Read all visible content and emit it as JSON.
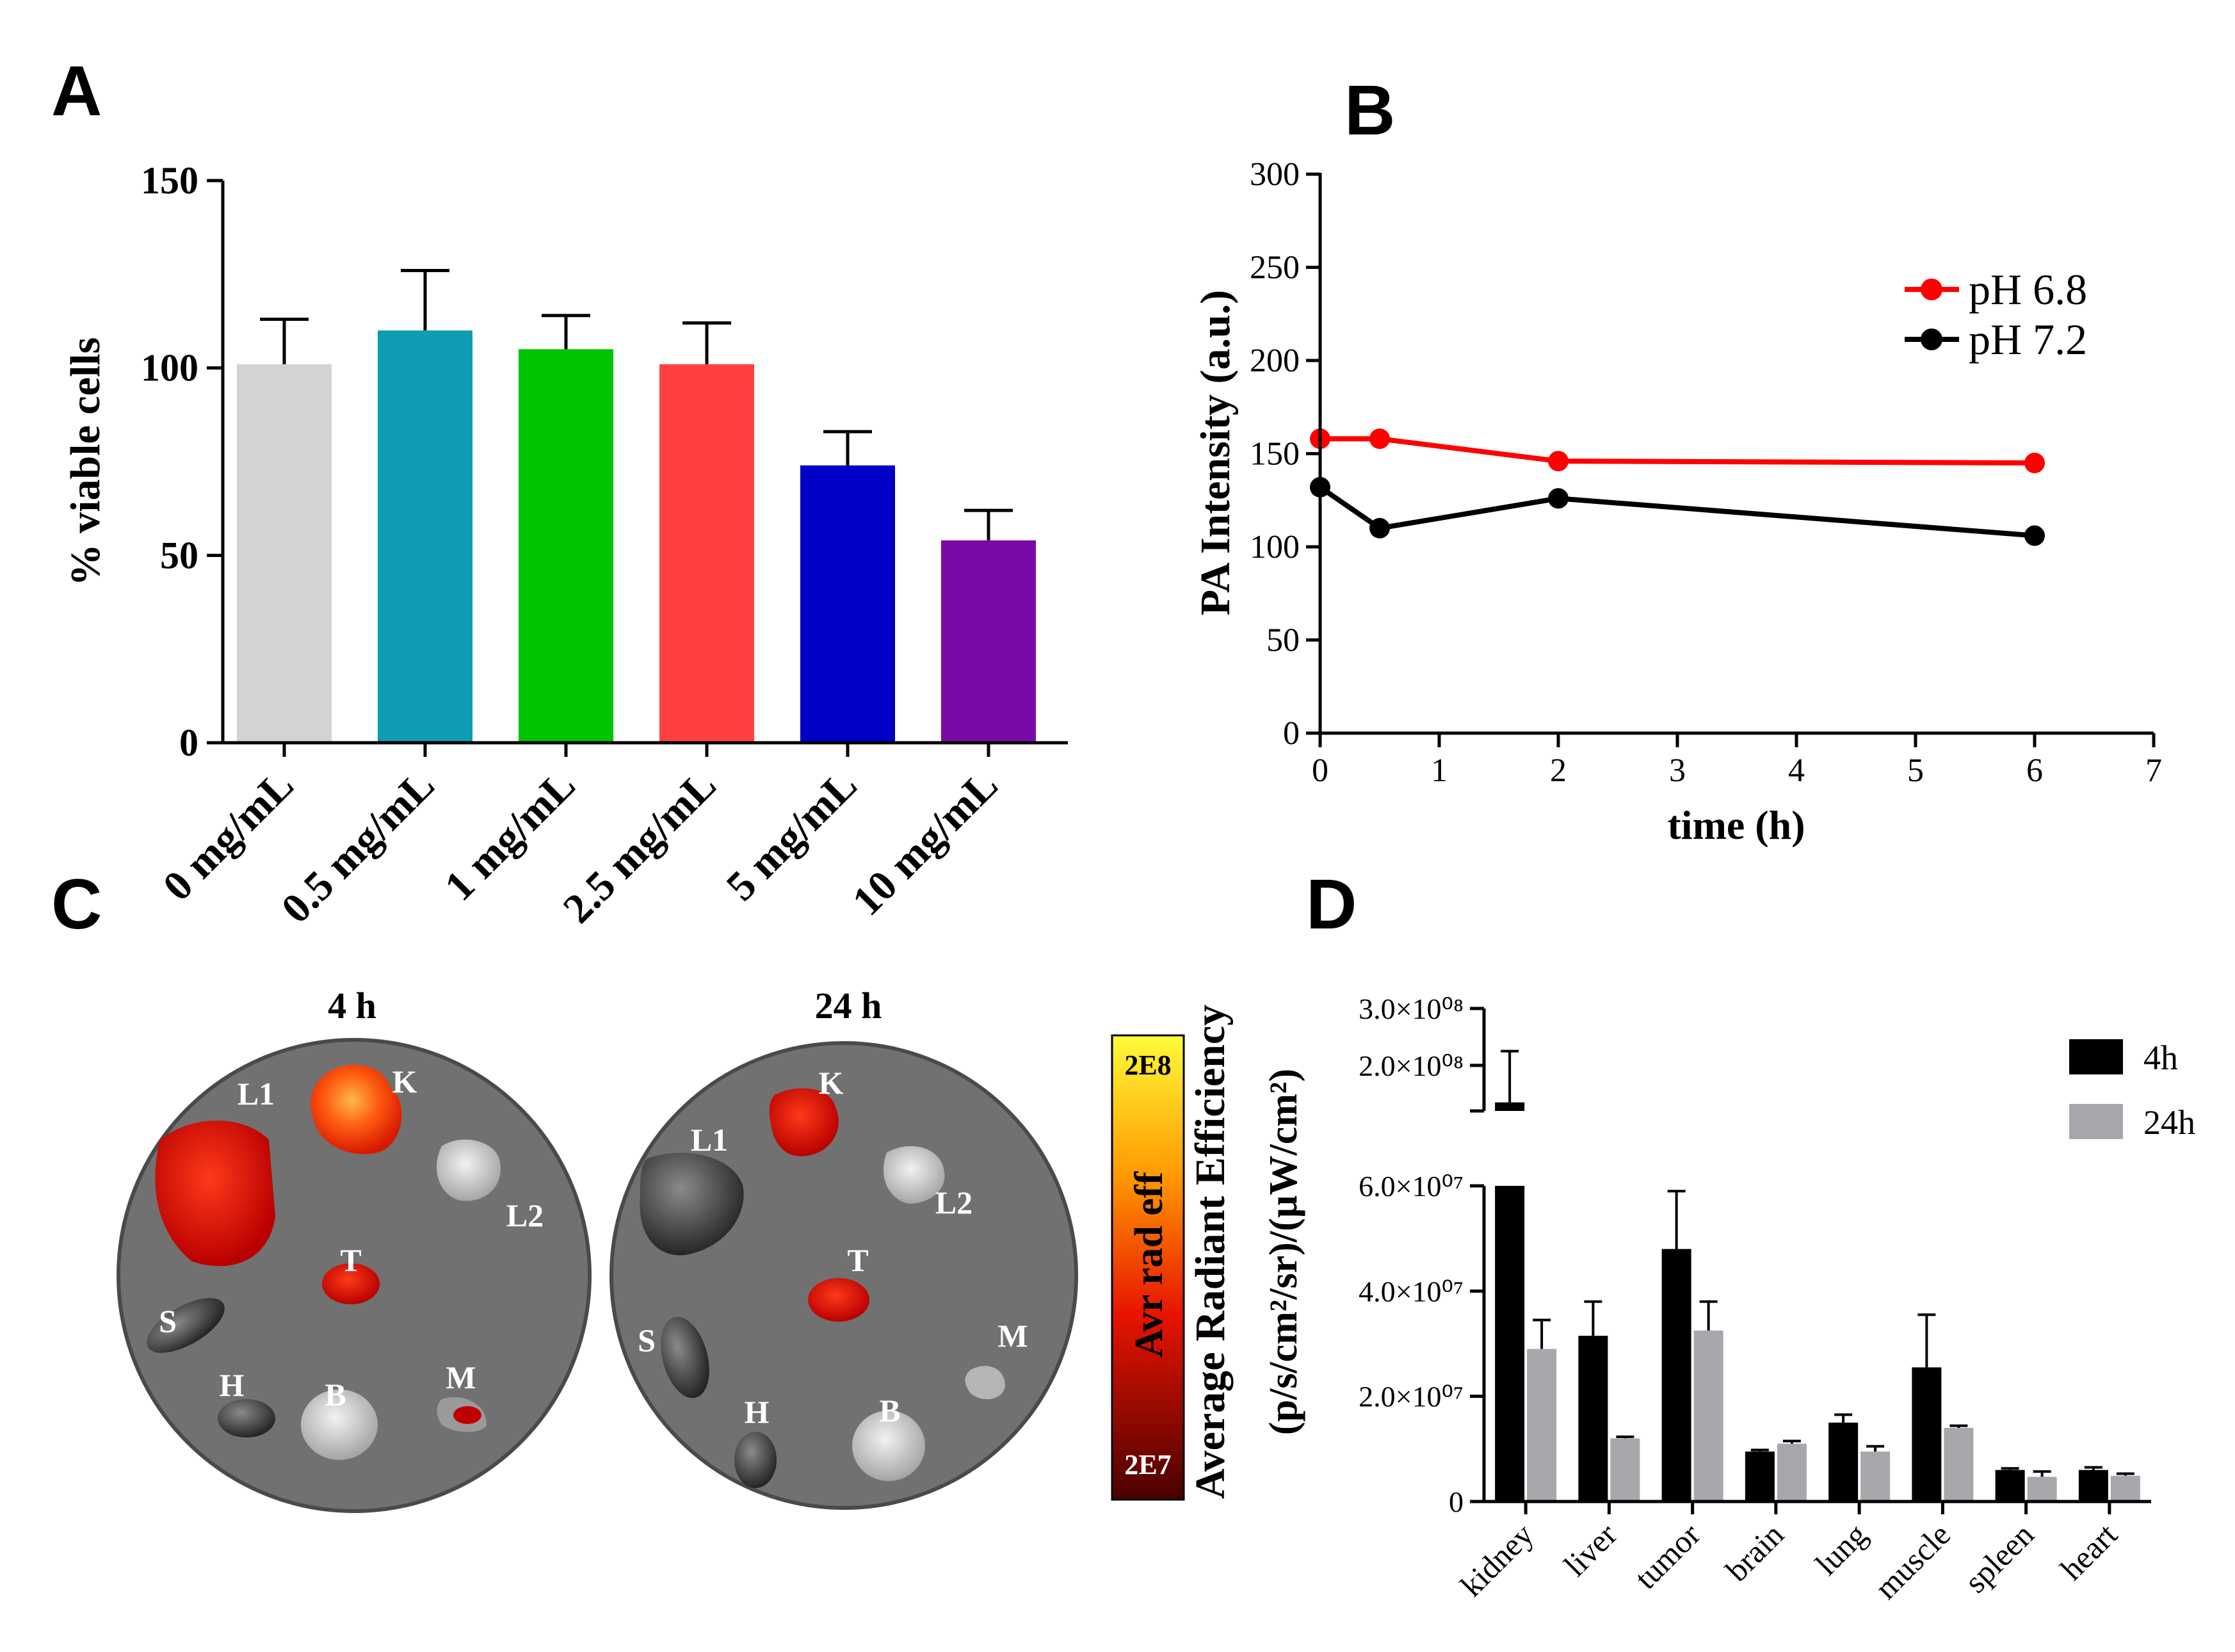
{
  "panels": {
    "a": "A",
    "b": "B",
    "c": "C",
    "d": "D"
  },
  "colorbar": {
    "top_label": "2E8",
    "bottom_label": "2E7",
    "title": "Avr rad eff"
  },
  "images": {
    "left_title": "4 h",
    "right_title": "24 h",
    "left_organs": [
      "L1",
      "K",
      "L2",
      "T",
      "S",
      "H",
      "B",
      "M"
    ],
    "right_organs": [
      "K",
      "L1",
      "L2",
      "T",
      "S",
      "H",
      "B",
      "M"
    ]
  },
  "chart_data": [
    {
      "id": "A",
      "type": "bar",
      "title": "",
      "xlabel": "",
      "ylabel": "% viable cells",
      "ylim": [
        0,
        150
      ],
      "yticks": [
        "0",
        "50",
        "100",
        "150"
      ],
      "categories": [
        "0 mg/mL",
        "0.5 mg/mL",
        "1 mg/mL",
        "2.5 mg/mL",
        "5 mg/mL",
        "10 mg/mL"
      ],
      "values": [
        101,
        110,
        105,
        101,
        74,
        54
      ],
      "errors": [
        12,
        16,
        9,
        11,
        9,
        8
      ],
      "colors": [
        "#d3d3d3",
        "#0e9cb4",
        "#00c400",
        "#ff4040",
        "#0000c8",
        "#7a0aa8"
      ]
    },
    {
      "id": "B",
      "type": "line",
      "title": "",
      "xlabel": "time (h)",
      "ylabel": "PA Intensity (a.u.)",
      "xlim": [
        0,
        7
      ],
      "ylim": [
        0,
        300
      ],
      "xticks": [
        "0",
        "1",
        "2",
        "3",
        "4",
        "5",
        "6",
        "7"
      ],
      "yticks": [
        "0",
        "50",
        "100",
        "150",
        "200",
        "250",
        "300"
      ],
      "legend_position": "top-right",
      "series": [
        {
          "name": "pH 6.8",
          "color": "#ff0000",
          "x": [
            0,
            0.5,
            2,
            6
          ],
          "y": [
            158,
            158,
            146,
            145
          ]
        },
        {
          "name": "pH 7.2",
          "color": "#000000",
          "x": [
            0,
            0.5,
            2,
            6
          ],
          "y": [
            132,
            110,
            126,
            106
          ]
        }
      ]
    },
    {
      "id": "D",
      "type": "bar",
      "title": "",
      "xlabel": "",
      "ylabel_line1": "Average Radiant Efficiency",
      "ylabel_line2": "(p/s/cm²/sr)/(µW/cm²)",
      "y_axis_break": true,
      "lower_range": [
        0,
        60000000
      ],
      "upper_range": [
        120000000,
        300000000
      ],
      "yticks_lower": [
        "0",
        "2.0×10⁰⁷",
        "4.0×10⁰⁷",
        "6.0×10⁰⁷"
      ],
      "yticks_upper": [
        "2.0×10⁰⁸",
        "3.0×10⁰⁸"
      ],
      "legend_position": "top-right",
      "categories": [
        "kidney",
        "liver",
        "tumor",
        "brain",
        "lung",
        "muscle",
        "spleen",
        "heart"
      ],
      "series": [
        {
          "name": "4h",
          "color": "#000000",
          "values": [
            135000000,
            31500000,
            48000000,
            9500000,
            15000000,
            25500000,
            6000000,
            6000000
          ],
          "errors": [
            90000000,
            6500000,
            11000000,
            300000,
            1500000,
            10000000,
            300000,
            500000
          ]
        },
        {
          "name": "24h",
          "color": "#a8a8ac",
          "values": [
            29000000,
            12000000,
            32500000,
            11000000,
            9500000,
            14000000,
            4700000,
            4900000
          ],
          "errors": [
            5500000,
            300000,
            5500000,
            500000,
            1000000,
            400000,
            1000000,
            400000
          ]
        }
      ]
    }
  ]
}
